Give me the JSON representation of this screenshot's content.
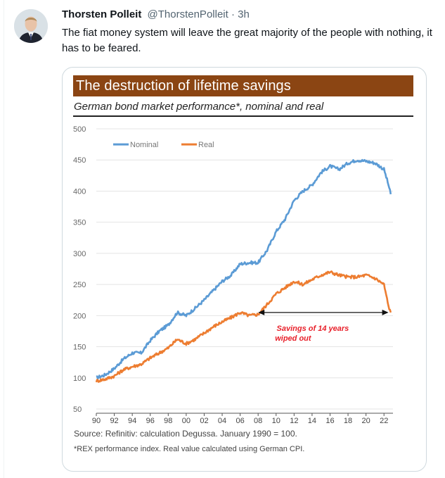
{
  "tweet": {
    "author_name": "Thorsten Polleit",
    "handle": "@ThorstenPolleit",
    "separator": "·",
    "time": "3h",
    "text": "The fiat money system will leave the great majority of the people with nothing, it has to be feared."
  },
  "colors": {
    "nominal": "#5b9bd5",
    "real": "#ed7d31",
    "title_bar": "#8b4513",
    "annotation": "#e8202a"
  },
  "chart_data": {
    "type": "line",
    "title": "The destruction of lifetime savings",
    "subtitle": "German bond market performance*, nominal and real",
    "x_tick_labels": [
      "90",
      "92",
      "94",
      "96",
      "98",
      "00",
      "02",
      "04",
      "06",
      "08",
      "10",
      "12",
      "14",
      "16",
      "18",
      "20",
      "22"
    ],
    "y_ticks": [
      50,
      100,
      150,
      200,
      250,
      300,
      350,
      400,
      450,
      500
    ],
    "ylim": [
      50,
      500
    ],
    "xlim": [
      1990,
      2023
    ],
    "legend": [
      "Nominal",
      "Real"
    ],
    "legend_position": "top-left",
    "series": [
      {
        "name": "Nominal",
        "x": [
          1990,
          1991,
          1992,
          1993,
          1994,
          1995,
          1996,
          1997,
          1998,
          1999,
          2000,
          2001,
          2002,
          2003,
          2004,
          2005,
          2006,
          2007,
          2008,
          2009,
          2010,
          2011,
          2012,
          2013,
          2014,
          2015,
          2016,
          2017,
          2018,
          2019,
          2020,
          2021,
          2022,
          2022.5,
          2022.75
        ],
        "values": [
          100,
          105,
          115,
          130,
          140,
          140,
          160,
          175,
          185,
          205,
          200,
          212,
          225,
          240,
          255,
          265,
          283,
          285,
          285,
          305,
          335,
          355,
          385,
          400,
          410,
          430,
          440,
          435,
          445,
          450,
          448,
          445,
          435,
          410,
          395
        ]
      },
      {
        "name": "Real",
        "x": [
          1990,
          1991,
          1992,
          1993,
          1994,
          1995,
          1996,
          1997,
          1998,
          1999,
          2000,
          2001,
          2002,
          2003,
          2004,
          2005,
          2006,
          2007,
          2008,
          2009,
          2010,
          2011,
          2012,
          2013,
          2014,
          2015,
          2016,
          2017,
          2018,
          2019,
          2020,
          2021,
          2022,
          2022.5,
          2022.75
        ],
        "values": [
          95,
          98,
          103,
          113,
          118,
          122,
          132,
          140,
          148,
          162,
          155,
          162,
          172,
          182,
          190,
          197,
          205,
          200,
          202,
          218,
          235,
          245,
          255,
          250,
          258,
          265,
          270,
          265,
          262,
          262,
          265,
          260,
          250,
          215,
          205
        ]
      }
    ],
    "annotation": {
      "text_line1": "Savings of 14 years",
      "text_line2": "wiped out",
      "arrow_from_x": 2008,
      "arrow_to_x": 2022.5,
      "arrow_y": 205
    },
    "source": "Source: Refinitiv: calculation Degussa. January 1990 = 100.",
    "note": "*REX performance index. Real value calculated using German CPI."
  }
}
